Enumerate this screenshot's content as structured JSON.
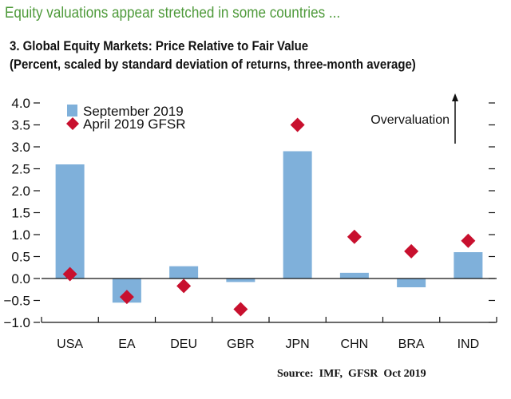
{
  "supertitle": "Equity valuations appear stretched in some countries ...",
  "chart_data": {
    "type": "bar",
    "title": "3. Global Equity Markets: Price Relative to Fair Value",
    "subtitle": "(Percent, scaled by standard deviation of returns, three-month average)",
    "categories": [
      "USA",
      "EA",
      "DEU",
      "GBR",
      "JPN",
      "CHN",
      "BRA",
      "IND"
    ],
    "series": [
      {
        "name": "September 2019",
        "kind": "bar",
        "color": "#7fb0da",
        "values": [
          2.6,
          -0.55,
          0.28,
          -0.08,
          2.9,
          0.13,
          -0.2,
          0.6
        ]
      },
      {
        "name": "April 2019 GFSR",
        "kind": "diamond",
        "color": "#c8102e",
        "values": [
          0.1,
          -0.42,
          -0.17,
          -0.7,
          3.5,
          0.95,
          0.62,
          0.86
        ]
      }
    ],
    "ylim": [
      -1.0,
      4.0
    ],
    "yticks": [
      "4.0",
      "3.5",
      "3.0",
      "2.5",
      "2.0",
      "1.5",
      "1.0",
      "0.5",
      "0.0",
      "-0.5",
      "-1.0"
    ],
    "legend_position": "top-left",
    "grid": false,
    "annotation": "Overvaluation"
  },
  "source": "Source:  IMF,  GFSR  Oct 2019"
}
